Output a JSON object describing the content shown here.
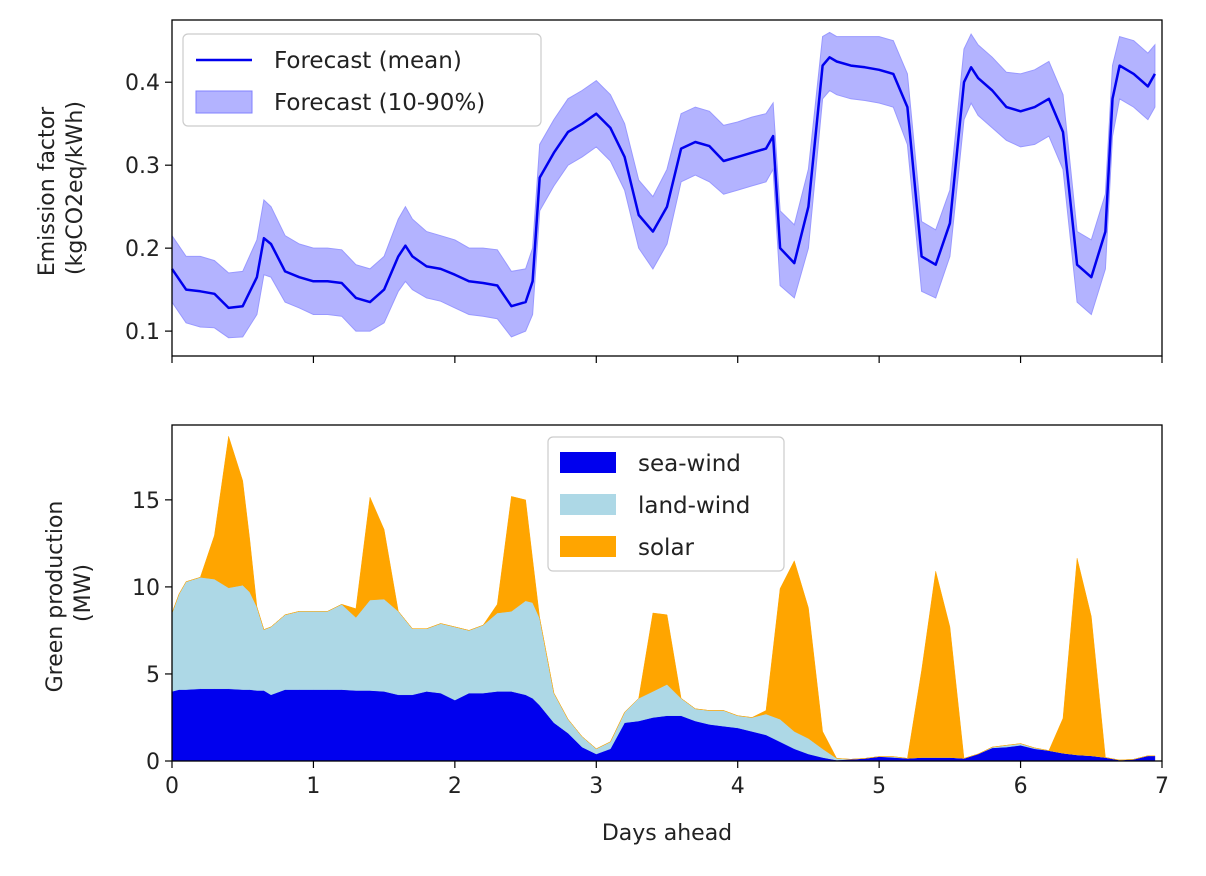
{
  "chart_data": [
    {
      "type": "line",
      "panel": "top",
      "title": "",
      "xlabel": "",
      "ylabel": "Emission factor\n(kgCO2eq/kWh)",
      "xlim": [
        0,
        7
      ],
      "ylim": [
        0.07,
        0.475
      ],
      "yticks": [
        0.1,
        0.2,
        0.3,
        0.4
      ],
      "ytick_labels": [
        "0.1",
        "0.2",
        "0.3",
        "0.4"
      ],
      "xticks": [
        0,
        1,
        2,
        3,
        4,
        5,
        6,
        7
      ],
      "grid": false,
      "legend_position": "upper-left",
      "legend": [
        {
          "label": "Forecast (mean)",
          "kind": "line",
          "color": "#0000ee"
        },
        {
          "label": "Forecast (10-90%)",
          "kind": "band",
          "color": "#b3b3ff"
        }
      ],
      "x": [
        0,
        0.1,
        0.2,
        0.3,
        0.4,
        0.5,
        0.6,
        0.65,
        0.7,
        0.8,
        0.9,
        1.0,
        1.1,
        1.2,
        1.3,
        1.4,
        1.5,
        1.6,
        1.65,
        1.7,
        1.8,
        1.9,
        2.0,
        2.1,
        2.2,
        2.3,
        2.4,
        2.5,
        2.55,
        2.6,
        2.7,
        2.8,
        2.9,
        3.0,
        3.1,
        3.2,
        3.3,
        3.4,
        3.5,
        3.6,
        3.7,
        3.8,
        3.9,
        4.0,
        4.1,
        4.2,
        4.25,
        4.3,
        4.4,
        4.5,
        4.6,
        4.65,
        4.7,
        4.8,
        4.9,
        5.0,
        5.1,
        5.2,
        5.3,
        5.4,
        5.5,
        5.6,
        5.65,
        5.7,
        5.8,
        5.9,
        6.0,
        6.1,
        6.2,
        6.3,
        6.4,
        6.5,
        6.6,
        6.65,
        6.7,
        6.8,
        6.9,
        6.95
      ],
      "series": [
        {
          "name": "Forecast (mean)",
          "role": "mean",
          "color": "#0000ee",
          "values": [
            0.175,
            0.15,
            0.148,
            0.145,
            0.128,
            0.13,
            0.165,
            0.212,
            0.205,
            0.172,
            0.165,
            0.16,
            0.16,
            0.158,
            0.14,
            0.135,
            0.15,
            0.19,
            0.203,
            0.19,
            0.178,
            0.175,
            0.168,
            0.16,
            0.158,
            0.155,
            0.13,
            0.135,
            0.16,
            0.285,
            0.315,
            0.34,
            0.35,
            0.362,
            0.345,
            0.31,
            0.24,
            0.22,
            0.25,
            0.32,
            0.328,
            0.323,
            0.305,
            0.31,
            0.315,
            0.32,
            0.335,
            0.2,
            0.182,
            0.25,
            0.42,
            0.43,
            0.425,
            0.42,
            0.418,
            0.415,
            0.41,
            0.37,
            0.19,
            0.18,
            0.23,
            0.4,
            0.418,
            0.405,
            0.39,
            0.37,
            0.365,
            0.37,
            0.38,
            0.34,
            0.18,
            0.165,
            0.22,
            0.38,
            0.42,
            0.41,
            0.395,
            0.41
          ]
        },
        {
          "name": "Forecast (10-90%)",
          "role": "band-low",
          "color": "#b3b3ff",
          "values": [
            0.135,
            0.11,
            0.105,
            0.104,
            0.092,
            0.093,
            0.12,
            0.168,
            0.165,
            0.135,
            0.128,
            0.12,
            0.12,
            0.118,
            0.1,
            0.1,
            0.11,
            0.148,
            0.16,
            0.15,
            0.14,
            0.136,
            0.128,
            0.12,
            0.118,
            0.115,
            0.093,
            0.1,
            0.12,
            0.245,
            0.275,
            0.3,
            0.31,
            0.322,
            0.305,
            0.27,
            0.2,
            0.175,
            0.205,
            0.28,
            0.288,
            0.28,
            0.265,
            0.27,
            0.275,
            0.28,
            0.295,
            0.155,
            0.14,
            0.2,
            0.38,
            0.39,
            0.385,
            0.38,
            0.378,
            0.375,
            0.37,
            0.325,
            0.148,
            0.14,
            0.19,
            0.355,
            0.375,
            0.36,
            0.345,
            0.33,
            0.322,
            0.325,
            0.335,
            0.295,
            0.135,
            0.12,
            0.175,
            0.335,
            0.38,
            0.37,
            0.355,
            0.37
          ]
        },
        {
          "name": "Forecast (10-90%)",
          "role": "band-high",
          "color": "#b3b3ff",
          "values": [
            0.215,
            0.19,
            0.19,
            0.185,
            0.17,
            0.172,
            0.21,
            0.258,
            0.25,
            0.215,
            0.205,
            0.2,
            0.2,
            0.198,
            0.18,
            0.175,
            0.19,
            0.235,
            0.25,
            0.235,
            0.22,
            0.215,
            0.21,
            0.2,
            0.2,
            0.198,
            0.172,
            0.175,
            0.2,
            0.325,
            0.355,
            0.38,
            0.39,
            0.402,
            0.385,
            0.35,
            0.282,
            0.262,
            0.295,
            0.362,
            0.37,
            0.365,
            0.348,
            0.352,
            0.358,
            0.362,
            0.375,
            0.245,
            0.228,
            0.295,
            0.455,
            0.46,
            0.455,
            0.455,
            0.455,
            0.455,
            0.45,
            0.41,
            0.232,
            0.222,
            0.27,
            0.44,
            0.458,
            0.445,
            0.43,
            0.412,
            0.41,
            0.415,
            0.425,
            0.385,
            0.22,
            0.21,
            0.265,
            0.42,
            0.455,
            0.45,
            0.435,
            0.445
          ]
        }
      ]
    },
    {
      "type": "area",
      "stacked": true,
      "panel": "bottom",
      "title": "",
      "xlabel": "Days ahead",
      "ylabel": "Green production\n(MW)",
      "xlim": [
        0,
        7
      ],
      "ylim": [
        0,
        19.3
      ],
      "yticks": [
        0,
        5,
        10,
        15
      ],
      "ytick_labels": [
        "0",
        "5",
        "10",
        "15"
      ],
      "xticks": [
        0,
        1,
        2,
        3,
        4,
        5,
        6,
        7
      ],
      "xtick_labels": [
        "0",
        "1",
        "2",
        "3",
        "4",
        "5",
        "6",
        "7"
      ],
      "grid": false,
      "legend_position": "upper-center",
      "legend": [
        {
          "label": "sea-wind",
          "color": "#0000ee"
        },
        {
          "label": "land-wind",
          "color": "#add8e6"
        },
        {
          "label": "solar",
          "color": "#ffa500"
        }
      ],
      "x": [
        0,
        0.05,
        0.1,
        0.2,
        0.3,
        0.4,
        0.5,
        0.55,
        0.6,
        0.65,
        0.7,
        0.8,
        0.9,
        1.0,
        1.1,
        1.2,
        1.3,
        1.4,
        1.5,
        1.6,
        1.7,
        1.8,
        1.9,
        2.0,
        2.1,
        2.2,
        2.3,
        2.4,
        2.5,
        2.55,
        2.6,
        2.7,
        2.8,
        2.9,
        3.0,
        3.1,
        3.2,
        3.3,
        3.4,
        3.5,
        3.6,
        3.7,
        3.8,
        3.9,
        4.0,
        4.1,
        4.2,
        4.3,
        4.4,
        4.5,
        4.6,
        4.7,
        4.8,
        4.9,
        5.0,
        5.1,
        5.2,
        5.3,
        5.4,
        5.5,
        5.6,
        5.7,
        5.8,
        5.9,
        6.0,
        6.1,
        6.2,
        6.3,
        6.4,
        6.5,
        6.6,
        6.7,
        6.8,
        6.9,
        6.95
      ],
      "series": [
        {
          "name": "sea-wind",
          "color": "#0000ee",
          "values": [
            4.0,
            4.1,
            4.1,
            4.15,
            4.15,
            4.15,
            4.1,
            4.1,
            4.05,
            4.05,
            3.8,
            4.1,
            4.1,
            4.1,
            4.1,
            4.1,
            4.05,
            4.05,
            4.0,
            3.8,
            3.8,
            4.0,
            3.9,
            3.5,
            3.9,
            3.9,
            4.0,
            4.0,
            3.8,
            3.6,
            3.2,
            2.2,
            1.6,
            0.8,
            0.4,
            0.7,
            2.2,
            2.3,
            2.5,
            2.6,
            2.6,
            2.3,
            2.1,
            2.0,
            1.9,
            1.7,
            1.5,
            1.1,
            0.7,
            0.4,
            0.2,
            0.05,
            0.1,
            0.15,
            0.25,
            0.2,
            0.15,
            0.2,
            0.2,
            0.2,
            0.15,
            0.4,
            0.75,
            0.8,
            0.9,
            0.7,
            0.6,
            0.45,
            0.35,
            0.3,
            0.2,
            0.05,
            0.1,
            0.3,
            0.3
          ]
        },
        {
          "name": "land-wind",
          "color": "#add8e6",
          "values": [
            4.5,
            5.5,
            6.2,
            6.4,
            6.3,
            5.8,
            6.0,
            5.6,
            4.8,
            3.5,
            3.9,
            4.3,
            4.5,
            4.5,
            4.5,
            4.9,
            4.2,
            5.2,
            5.3,
            4.8,
            3.8,
            3.6,
            4.0,
            4.2,
            3.6,
            3.9,
            4.5,
            4.6,
            5.4,
            5.5,
            5.0,
            1.7,
            0.8,
            0.6,
            0.3,
            0.4,
            0.6,
            1.3,
            1.5,
            1.8,
            1.0,
            0.7,
            0.8,
            0.9,
            0.7,
            0.8,
            1.2,
            1.3,
            1.0,
            0.9,
            0.5,
            0.1,
            0.0,
            0.0,
            0.0,
            0.05,
            0.0,
            0.0,
            0.0,
            0.0,
            0.0,
            0.0,
            0.05,
            0.1,
            0.1,
            0.05,
            0.0,
            0.0,
            0.0,
            0.0,
            0.0,
            0.0,
            0.0,
            0.0,
            0.0
          ]
        },
        {
          "name": "solar",
          "color": "#ffa500",
          "values": [
            0,
            0,
            0,
            0,
            2.5,
            8.7,
            6.0,
            3.0,
            0,
            0,
            0,
            0,
            0,
            0,
            0,
            0,
            0.5,
            5.9,
            4.0,
            0,
            0,
            0,
            0,
            0,
            0,
            0,
            0.5,
            6.6,
            5.8,
            2.5,
            0,
            0,
            0,
            0,
            0,
            0,
            0,
            0,
            4.5,
            4.0,
            0,
            0,
            0,
            0,
            0,
            0,
            0.2,
            7.5,
            9.8,
            7.5,
            1.0,
            0,
            0,
            0,
            0,
            0,
            0,
            5.0,
            10.7,
            7.5,
            0,
            0,
            0,
            0,
            0,
            0,
            0,
            2.0,
            11.3,
            8.0,
            0,
            0,
            0,
            0,
            0
          ]
        }
      ]
    }
  ]
}
